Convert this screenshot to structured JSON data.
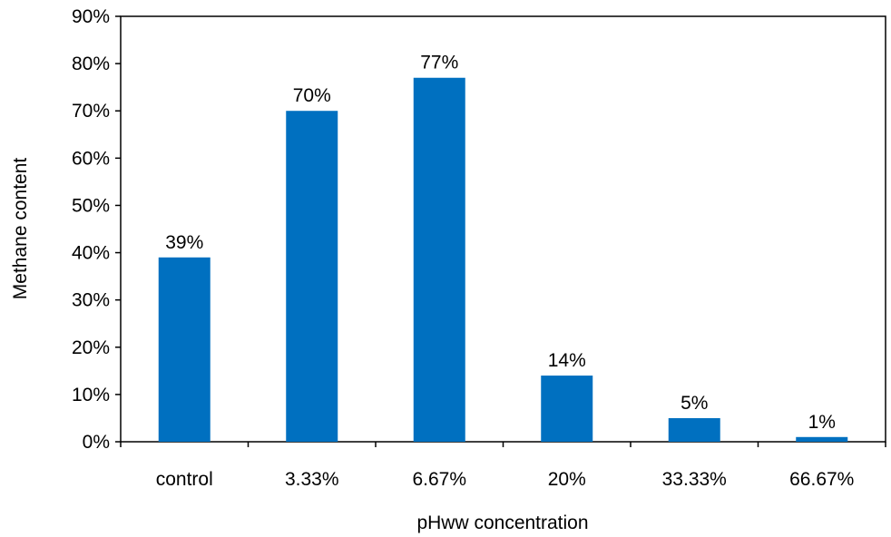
{
  "chart_data": {
    "type": "bar",
    "title": "",
    "xlabel": "pHww concentration",
    "ylabel": "Methane content",
    "categories": [
      "control",
      "3.33%",
      "6.67%",
      "20%",
      "33.33%",
      "66.67%"
    ],
    "values": [
      39,
      70,
      77,
      14,
      5,
      1
    ],
    "data_labels": [
      "39%",
      "70%",
      "77%",
      "14%",
      "5%",
      "1%"
    ],
    "ylim": [
      0,
      90
    ],
    "y_ticks": [
      0,
      10,
      20,
      30,
      40,
      50,
      60,
      70,
      80,
      90
    ],
    "y_tick_labels": [
      "0%",
      "10%",
      "20%",
      "30%",
      "40%",
      "50%",
      "60%",
      "70%",
      "80%",
      "90%"
    ],
    "grid": false,
    "legend": "none",
    "bar_color": "#0070C0",
    "frame": "box"
  }
}
